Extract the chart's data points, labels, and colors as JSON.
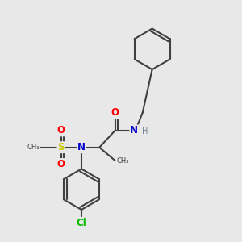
{
  "bg_color": "#e8e8e8",
  "atom_colors": {
    "C": "#404040",
    "N": "#0000cd",
    "O": "#ff0000",
    "S": "#cccc00",
    "Cl": "#00bb00",
    "H": "#708090"
  },
  "bond_color": "#404040",
  "bond_width": 1.5,
  "dbo": 0.012,
  "fs": 8.5
}
